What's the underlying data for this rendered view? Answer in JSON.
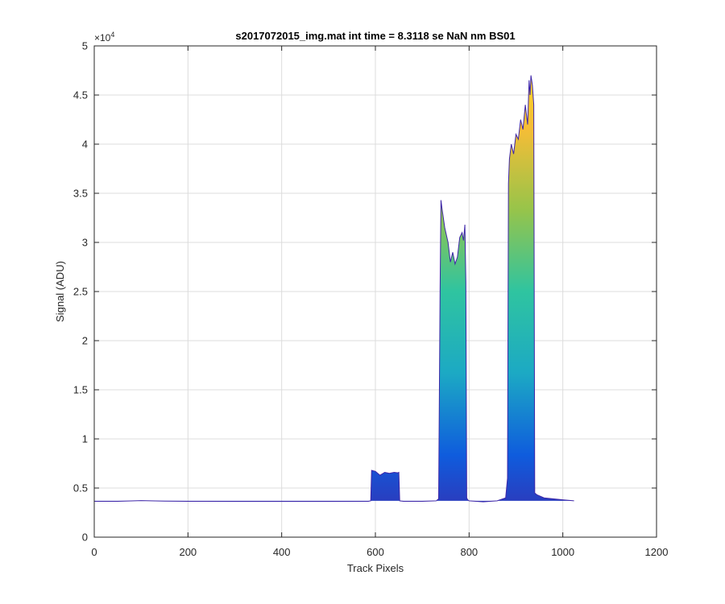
{
  "chart_data": {
    "type": "area",
    "title": "s2017072015_img.mat int time = 8.3118 se  NaN nm BS01",
    "xlabel": "Track Pixels",
    "ylabel": "Signal (ADU)",
    "y_exponent_label": "×10",
    "y_exponent_power": "4",
    "xlim": [
      0,
      1200
    ],
    "ylim": [
      0,
      50000
    ],
    "grid": true,
    "x_ticks": [
      0,
      200,
      400,
      600,
      800,
      1000,
      1200
    ],
    "x_tick_labels": [
      "0",
      "200",
      "400",
      "600",
      "800",
      "1000",
      "1200"
    ],
    "y_ticks": [
      0,
      5000,
      10000,
      15000,
      20000,
      25000,
      30000,
      35000,
      40000,
      45000,
      50000
    ],
    "y_tick_labels": [
      "0",
      "0.5",
      "1",
      "1.5",
      "2",
      "2.5",
      "3",
      "3.5",
      "4",
      "4.5",
      "5"
    ],
    "colormap": [
      "#3e26a8",
      "#0f5cdd",
      "#1ca9c4",
      "#2fc4a0",
      "#97c44a",
      "#f7bd36",
      "#f9e21e"
    ],
    "baseline": 3700,
    "series": [
      {
        "x": [
          0,
          50,
          100,
          150,
          200,
          300,
          400,
          500,
          585,
          590,
          592,
          600,
          610,
          620,
          630,
          640,
          648,
          650,
          652,
          660,
          700,
          730,
          735,
          738,
          740,
          742,
          748,
          755,
          760,
          765,
          770,
          775,
          780,
          785,
          788,
          791,
          793,
          795,
          797,
          800,
          830,
          860,
          878,
          882,
          884,
          886,
          890,
          895,
          900,
          905,
          910,
          915,
          920,
          925,
          928,
          930,
          932,
          935,
          938,
          940,
          945,
          960,
          1000,
          1024
        ],
        "y": [
          3650,
          3650,
          3720,
          3660,
          3650,
          3640,
          3640,
          3640,
          3650,
          3700,
          6800,
          6700,
          6300,
          6600,
          6500,
          6600,
          6550,
          6600,
          3700,
          3650,
          3650,
          3700,
          3900,
          25000,
          34300,
          33500,
          31500,
          30000,
          28000,
          29000,
          27800,
          28500,
          30500,
          31000,
          30200,
          31800,
          26000,
          4000,
          3800,
          3700,
          3600,
          3700,
          4000,
          6000,
          36000,
          38500,
          40000,
          39000,
          41000,
          40500,
          42500,
          41500,
          44000,
          42000,
          46500,
          45000,
          47000,
          46000,
          44000,
          4500,
          4300,
          4000,
          3800,
          3700
        ]
      }
    ]
  }
}
